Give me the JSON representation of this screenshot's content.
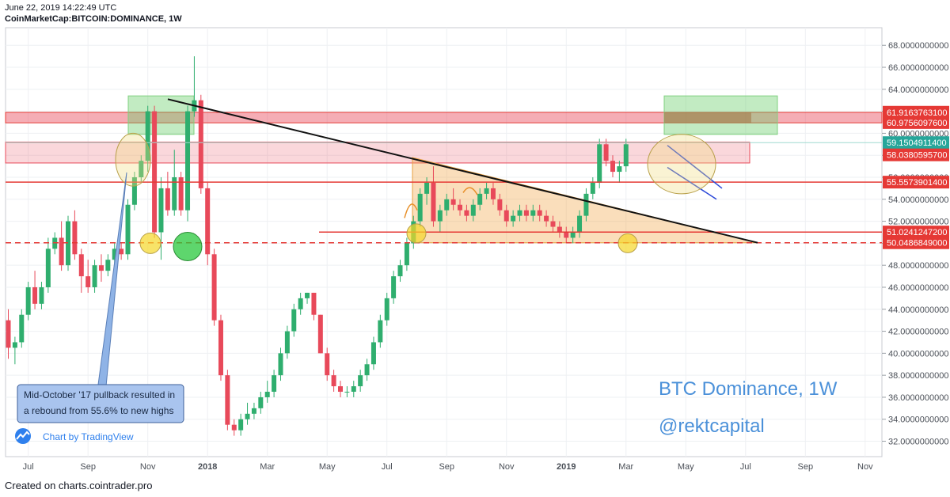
{
  "header": {
    "timestamp": "June 22, 2019 14:22:49 UTC",
    "symbol": "CoinMarketCap:BITCOIN:DOMINANCE, 1W"
  },
  "footer": {
    "credit": "Created on charts.cointrader.pro"
  },
  "watermark": {
    "line1": "BTC Dominance, 1W",
    "line2": "@rektcapital",
    "color": "#4a90d9"
  },
  "branding": {
    "label": "Chart by TradingView",
    "icon": "tradingview-logo-icon"
  },
  "callout": {
    "text_line1": "Mid-October '17 pullback resulted in",
    "text_line2": "a rebound from 55.6% to new highs"
  },
  "chart_data": {
    "type": "candlestick",
    "timeframe": "1W",
    "ylim": [
      30.6,
      69.6
    ],
    "y_ticks": [
      {
        "value": 32,
        "label": "32.0000000000"
      },
      {
        "value": 34,
        "label": "34.0000000000"
      },
      {
        "value": 36,
        "label": "36.0000000000"
      },
      {
        "value": 38,
        "label": "38.0000000000"
      },
      {
        "value": 40,
        "label": "40.0000000000"
      },
      {
        "value": 42,
        "label": "42.0000000000"
      },
      {
        "value": 44,
        "label": "44.0000000000"
      },
      {
        "value": 46,
        "label": "46.0000000000"
      },
      {
        "value": 48,
        "label": "48.0000000000"
      },
      {
        "value": 50,
        "label": "50.0000000000"
      },
      {
        "value": 52,
        "label": "52.0000000000"
      },
      {
        "value": 54,
        "label": "54.0000000000"
      },
      {
        "value": 56,
        "label": "56.0000000000"
      },
      {
        "value": 58,
        "label": "58.0000000000"
      },
      {
        "value": 60,
        "label": "60.0000000000"
      },
      {
        "value": 62,
        "label": "62.0000000000"
      },
      {
        "value": 64,
        "label": "64.0000000000"
      },
      {
        "value": 66,
        "label": "66.0000000000"
      },
      {
        "value": 68,
        "label": "68.0000000000"
      }
    ],
    "x_ticks": [
      {
        "label": "Jul",
        "week": 3,
        "bold": false
      },
      {
        "label": "Sep",
        "week": 12,
        "bold": false
      },
      {
        "label": "Nov",
        "week": 21,
        "bold": false
      },
      {
        "label": "2018",
        "week": 30,
        "bold": true
      },
      {
        "label": "Mar",
        "week": 39,
        "bold": false
      },
      {
        "label": "May",
        "week": 48,
        "bold": false
      },
      {
        "label": "Jul",
        "week": 57,
        "bold": false
      },
      {
        "label": "Sep",
        "week": 66,
        "bold": false
      },
      {
        "label": "Nov",
        "week": 75,
        "bold": false
      },
      {
        "label": "2019",
        "week": 84,
        "bold": true
      },
      {
        "label": "Mar",
        "week": 93,
        "bold": false
      },
      {
        "label": "May",
        "week": 102,
        "bold": false
      },
      {
        "label": "Jul",
        "week": 111,
        "bold": false
      },
      {
        "label": "Sep",
        "week": 120,
        "bold": false
      },
      {
        "label": "Nov",
        "week": 129,
        "bold": false
      }
    ],
    "price_labels": [
      {
        "value": 61.91637631,
        "label": "61.9163763100",
        "color": "#e53935"
      },
      {
        "value": 60.97560976,
        "label": "60.9756097600",
        "color": "#e53935"
      },
      {
        "value": 59.15049114,
        "label": "59.1504911400",
        "color": "#26a69a"
      },
      {
        "value": 58.03805957,
        "label": "58.0380595700",
        "color": "#e53935"
      },
      {
        "value": 55.55739014,
        "label": "55.5573901400",
        "color": "#e53935"
      },
      {
        "value": 51.02412472,
        "label": "51.0241247200",
        "color": "#e53935"
      },
      {
        "value": 50.0486849,
        "label": "50.0486849000",
        "color": "#e53935"
      }
    ],
    "colors": {
      "up": "#2fae6e",
      "down": "#e8495a"
    },
    "candles": [
      [
        43.0,
        44.0,
        39.5,
        40.5
      ],
      [
        40.5,
        41.5,
        39.0,
        41.0
      ],
      [
        41.0,
        44.0,
        40.5,
        43.5
      ],
      [
        43.5,
        46.5,
        43.0,
        46.0
      ],
      [
        46.0,
        47.5,
        44.0,
        44.5
      ],
      [
        44.5,
        46.5,
        44.0,
        46.0
      ],
      [
        46.0,
        50.5,
        45.5,
        49.5
      ],
      [
        49.5,
        51.0,
        49.0,
        50.5
      ],
      [
        50.5,
        52.0,
        47.5,
        48.0
      ],
      [
        48.0,
        52.5,
        47.5,
        52.0
      ],
      [
        52.0,
        53.0,
        48.5,
        49.0
      ],
      [
        49.0,
        49.5,
        45.5,
        47.0
      ],
      [
        47.0,
        48.5,
        45.5,
        46.0
      ],
      [
        46.0,
        48.5,
        45.5,
        48.0
      ],
      [
        48.0,
        49.0,
        46.5,
        47.5
      ],
      [
        47.5,
        49.0,
        47.0,
        48.5
      ],
      [
        48.5,
        50.0,
        48.0,
        49.5
      ],
      [
        49.5,
        50.0,
        48.5,
        49.0
      ],
      [
        49.0,
        54.0,
        48.5,
        53.5
      ],
      [
        53.5,
        56.5,
        53.0,
        56.0
      ],
      [
        56.0,
        58.0,
        55.5,
        57.5
      ],
      [
        57.5,
        62.5,
        56.5,
        62.0
      ],
      [
        62.0,
        62.5,
        50.5,
        51.0
      ],
      [
        51.0,
        56.0,
        48.5,
        55.0
      ],
      [
        55.0,
        56.5,
        52.5,
        53.0
      ],
      [
        53.0,
        58.5,
        52.5,
        56.0
      ],
      [
        56.0,
        56.5,
        52.5,
        53.0
      ],
      [
        53.0,
        62.5,
        52.0,
        62.0
      ],
      [
        62.0,
        67.0,
        61.5,
        63.0
      ],
      [
        63.0,
        63.5,
        54.5,
        55.0
      ],
      [
        55.0,
        55.5,
        48.0,
        49.0
      ],
      [
        49.0,
        49.5,
        42.5,
        43.0
      ],
      [
        43.0,
        43.5,
        37.5,
        38.0
      ],
      [
        38.0,
        38.5,
        33.0,
        33.5
      ],
      [
        33.5,
        34.0,
        32.5,
        33.0
      ],
      [
        33.0,
        34.5,
        32.5,
        34.0
      ],
      [
        34.0,
        35.5,
        33.5,
        34.5
      ],
      [
        34.5,
        35.5,
        34.0,
        35.0
      ],
      [
        35.0,
        36.5,
        34.5,
        36.0
      ],
      [
        36.0,
        37.5,
        35.5,
        36.5
      ],
      [
        36.5,
        38.5,
        36.0,
        38.0
      ],
      [
        38.0,
        40.5,
        37.5,
        40.0
      ],
      [
        40.0,
        42.5,
        39.5,
        42.0
      ],
      [
        42.0,
        44.5,
        41.5,
        44.0
      ],
      [
        44.0,
        45.5,
        43.5,
        45.0
      ],
      [
        45.0,
        45.5,
        44.5,
        45.5
      ],
      [
        45.5,
        45.5,
        43.0,
        43.5
      ],
      [
        43.5,
        43.5,
        40.0,
        40.0
      ],
      [
        40.0,
        40.5,
        37.5,
        38.0
      ],
      [
        38.0,
        38.5,
        36.5,
        37.0
      ],
      [
        37.0,
        37.5,
        36.0,
        36.5
      ],
      [
        36.5,
        37.0,
        36.0,
        36.5
      ],
      [
        36.5,
        37.5,
        36.0,
        37.0
      ],
      [
        37.0,
        38.5,
        36.5,
        38.0
      ],
      [
        38.0,
        39.5,
        37.5,
        39.0
      ],
      [
        39.0,
        41.5,
        38.5,
        41.0
      ],
      [
        41.0,
        43.5,
        40.5,
        43.0
      ],
      [
        43.0,
        45.5,
        42.5,
        45.0
      ],
      [
        45.0,
        47.5,
        44.5,
        47.0
      ],
      [
        47.0,
        48.5,
        46.5,
        48.0
      ],
      [
        48.0,
        50.5,
        47.5,
        50.0
      ],
      [
        50.0,
        52.5,
        49.5,
        52.0
      ],
      [
        52.0,
        55.0,
        51.5,
        54.5
      ],
      [
        54.5,
        56.0,
        53.5,
        55.5
      ],
      [
        55.5,
        57.0,
        51.5,
        52.0
      ],
      [
        52.0,
        53.5,
        51.0,
        53.0
      ],
      [
        53.0,
        54.5,
        52.5,
        54.0
      ],
      [
        54.0,
        55.0,
        53.0,
        53.5
      ],
      [
        53.5,
        54.0,
        52.5,
        53.0
      ],
      [
        53.0,
        53.5,
        52.0,
        52.5
      ],
      [
        52.5,
        54.0,
        52.0,
        53.5
      ],
      [
        53.5,
        55.0,
        53.0,
        54.5
      ],
      [
        54.5,
        55.5,
        54.0,
        55.0
      ],
      [
        55.0,
        55.5,
        53.5,
        54.0
      ],
      [
        54.0,
        54.5,
        52.5,
        53.0
      ],
      [
        53.0,
        53.5,
        51.5,
        52.0
      ],
      [
        52.0,
        53.0,
        51.5,
        52.5
      ],
      [
        52.5,
        53.5,
        52.0,
        53.0
      ],
      [
        53.0,
        53.5,
        52.0,
        52.5
      ],
      [
        52.5,
        53.5,
        52.0,
        53.0
      ],
      [
        53.0,
        53.5,
        52.0,
        52.5
      ],
      [
        52.5,
        53.0,
        51.5,
        52.0
      ],
      [
        52.0,
        52.5,
        51.0,
        51.5
      ],
      [
        51.5,
        52.0,
        50.5,
        51.0
      ],
      [
        51.0,
        51.5,
        50.0,
        50.5
      ],
      [
        50.5,
        51.5,
        50.0,
        51.0
      ],
      [
        51.0,
        53.0,
        50.5,
        52.5
      ],
      [
        52.5,
        55.0,
        52.0,
        54.5
      ],
      [
        54.5,
        56.0,
        54.0,
        55.5
      ],
      [
        55.5,
        59.5,
        55.0,
        59.0
      ],
      [
        59.0,
        59.5,
        57.0,
        57.5
      ],
      [
        57.5,
        58.0,
        56.0,
        56.5
      ],
      [
        56.5,
        57.5,
        55.5,
        57.0
      ],
      [
        57.0,
        59.5,
        56.5,
        59.0
      ]
    ]
  }
}
